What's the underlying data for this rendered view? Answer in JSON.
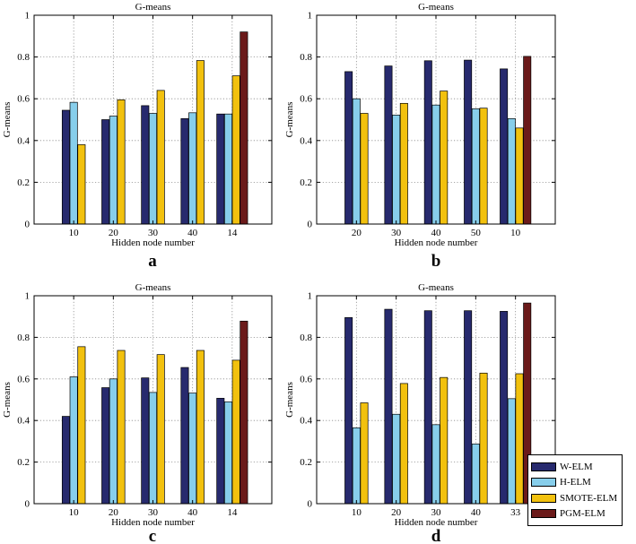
{
  "colors": {
    "W-ELM": "#272a6e",
    "H-ELM": "#87ceeb",
    "SMOTE-ELM": "#f2c10e",
    "PGM-ELM": "#6b1a1a",
    "grid": "#8c8c8c",
    "axis": "#000000"
  },
  "legend": {
    "position": "bottom-right",
    "entries": [
      "W-ELM",
      "H-ELM",
      "SMOTE-ELM",
      "PGM-ELM"
    ]
  },
  "chart_data": [
    {
      "type": "bar",
      "panel_label": "a",
      "title": "G-means",
      "xlabel": "Hidden node number",
      "ylabel": "G-means",
      "ylim": [
        0,
        1
      ],
      "yticks": [
        "0",
        "0.2",
        "0.4",
        "0.6",
        "0.8",
        "1"
      ],
      "grid": true,
      "categories": [
        "10",
        "20",
        "30",
        "40",
        "14"
      ],
      "series": [
        {
          "name": "W-ELM",
          "values": [
            0.545,
            0.5,
            0.567,
            0.505,
            0.527
          ]
        },
        {
          "name": "H-ELM",
          "values": [
            0.583,
            0.517,
            0.53,
            0.533,
            0.527
          ]
        },
        {
          "name": "SMOTE-ELM",
          "values": [
            0.38,
            0.595,
            0.64,
            0.783,
            0.71
          ]
        },
        {
          "name": "PGM-ELM",
          "values": [
            null,
            null,
            null,
            null,
            0.92
          ]
        }
      ]
    },
    {
      "type": "bar",
      "panel_label": "b",
      "title": "G-means",
      "xlabel": "Hidden node number",
      "ylabel": "G-means",
      "ylim": [
        0,
        1
      ],
      "yticks": [
        "0",
        "0.2",
        "0.4",
        "0.6",
        "0.8",
        "1"
      ],
      "grid": true,
      "categories": [
        "20",
        "30",
        "40",
        "50",
        "10"
      ],
      "series": [
        {
          "name": "W-ELM",
          "values": [
            0.73,
            0.757,
            0.782,
            0.785,
            0.743
          ]
        },
        {
          "name": "H-ELM",
          "values": [
            0.6,
            0.522,
            0.57,
            0.552,
            0.505
          ]
        },
        {
          "name": "SMOTE-ELM",
          "values": [
            0.53,
            0.578,
            0.637,
            0.555,
            0.46
          ]
        },
        {
          "name": "PGM-ELM",
          "values": [
            null,
            null,
            null,
            null,
            0.803
          ]
        }
      ]
    },
    {
      "type": "bar",
      "panel_label": "c",
      "title": "G-means",
      "xlabel": "Hidden node number",
      "ylabel": "G-means",
      "ylim": [
        0,
        1
      ],
      "yticks": [
        "0",
        "0.2",
        "0.4",
        "0.6",
        "0.8",
        "1"
      ],
      "grid": true,
      "categories": [
        "10",
        "20",
        "30",
        "40",
        "14"
      ],
      "series": [
        {
          "name": "W-ELM",
          "values": [
            0.42,
            0.558,
            0.605,
            0.655,
            0.507
          ]
        },
        {
          "name": "H-ELM",
          "values": [
            0.61,
            0.6,
            0.535,
            0.532,
            0.49
          ]
        },
        {
          "name": "SMOTE-ELM",
          "values": [
            0.755,
            0.737,
            0.717,
            0.737,
            0.69
          ]
        },
        {
          "name": "PGM-ELM",
          "values": [
            null,
            null,
            null,
            null,
            0.878
          ]
        }
      ]
    },
    {
      "type": "bar",
      "panel_label": "d",
      "title": "G-means",
      "xlabel": "Hidden node number",
      "ylabel": "G-means",
      "ylim": [
        0,
        1
      ],
      "yticks": [
        "0",
        "0.2",
        "0.4",
        "0.6",
        "0.8",
        "1"
      ],
      "grid": true,
      "categories": [
        "10",
        "20",
        "30",
        "40",
        "33"
      ],
      "series": [
        {
          "name": "W-ELM",
          "values": [
            0.895,
            0.935,
            0.928,
            0.928,
            0.925
          ]
        },
        {
          "name": "H-ELM",
          "values": [
            0.365,
            0.43,
            0.38,
            0.287,
            0.505
          ]
        },
        {
          "name": "SMOTE-ELM",
          "values": [
            0.485,
            0.578,
            0.607,
            0.628,
            0.625
          ]
        },
        {
          "name": "PGM-ELM",
          "values": [
            null,
            null,
            null,
            null,
            0.965
          ]
        }
      ]
    }
  ]
}
